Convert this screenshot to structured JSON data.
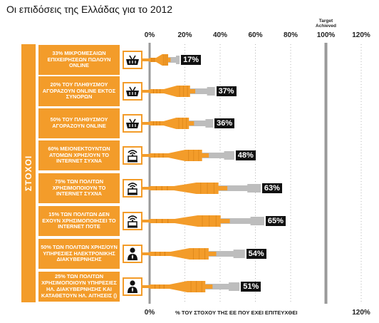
{
  "title": "Οι επιδόσεις της Ελλάδας για το 2012",
  "chart_data": {
    "type": "bar",
    "side_label": "ΣΤΟΧΟΙ",
    "target_label_line1": "Target",
    "target_label_line2": "Achieved",
    "xlabel": "% ΤΟΥ ΣΤΟΧΟΥ ΤΗΣ ΕΕ ΠΟΥ ΕΧΕΙ ΕΠΙΤΕΥΧΘΕΙ",
    "xlim": [
      0,
      120
    ],
    "top_ticks": [
      "0%",
      "20%",
      "40%",
      "60%",
      "80%",
      "100%",
      "120%"
    ],
    "bottom_ticks": [
      "0%",
      "120%"
    ],
    "target_value": 100,
    "bar_color": "#f39c2a",
    "trail_color": "#bdbdbd",
    "categories": [
      "33% ΜΙΚΡΟΜΕΣΑΙΩΝ ΕΠΙΧΕΙΡΗΣΕΩΝ ΠΩΛΟΥΝ ONLINE",
      "20% ΤΟΥ ΠΛΗΘΥΣΜΟΥ ΑΓΟΡΑΖΟΥΝ ONLINE ΕΚΤΟΣ ΣΥΝΟΡΩΝ",
      "50% ΤΟΥ ΠΛΗΘΥΣΜΟΥ ΑΓΟΡΑΖΟΥΝ ONLINE",
      "60% ΜΕΙΟΝΕΚΤΟΥΝΤΩΝ ΑΤΟΜΩΝ ΧΡΗΣ/ΟΥΝ ΤΟ INTERNET ΣΥΧΝΑ",
      "75% ΤΩΝ ΠΟΛΙΤΩΝ ΧΡΗΣΙΜΟΠΟΙΟΥΝ ΤΟ INTERNET ΣΥΧΝΑ",
      "15% ΤΩΝ ΠΟΛΙΤΩΝ ΔΕΝ ΕΧΟΥΝ ΧΡΗΣΙΜΟΠΟΙΗΣΕΙ ΤΟ INTERNET ΠΟΤΕ",
      "50% ΤΩΝ ΠΟΛΙΤΩΝ ΧΡΗΣ/ΟΥΝ ΥΠΗΡΕΣΙΕΣ ΗΛΕΚΤΡΟΝΙΚΗΣ ΔΙΑΚΥΒΕΡΝΗΣΗΣ",
      "25% ΤΩΝ ΠΟΛΙΤΩΝ ΧΡΗΣΙΜΟΠΟΙΟΥΝ ΥΠΗΡΕΣΙΕΣ ΗΛ. ΔΙΑΚΥΒΕΡΝΗΣΗΣ ΚΑΙ ΚΑΤΑΘΕΤΟΥΝ ΗΛ. ΑΙΤΗΣΕΙΣ ()"
    ],
    "icons": [
      "basket-icon",
      "basket-icon",
      "basket-icon",
      "wifi-computer-icon",
      "wifi-computer-icon",
      "wifi-computer-icon",
      "person-icon",
      "person-icon"
    ],
    "values": [
      17,
      37,
      36,
      48,
      63,
      65,
      54,
      51
    ],
    "value_labels": [
      "17%",
      "37%",
      "36%",
      "48%",
      "63%",
      "65%",
      "54%",
      "51%"
    ]
  }
}
